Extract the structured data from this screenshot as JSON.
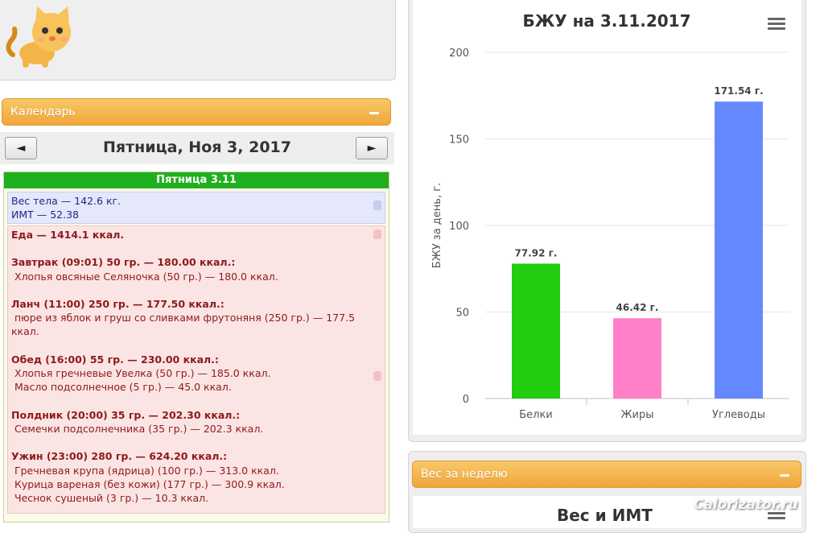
{
  "calendar": {
    "title": "Календарь",
    "prev_icon": "◄",
    "next_icon": "►",
    "date_label": "Пятница, Ноя 3, 2017"
  },
  "day": {
    "header": "Пятница 3.11",
    "weight": "Вес тела — 142.6 кг.",
    "bmi": "ИМТ — 52.38",
    "food_total": "Еда — 1414.1 ккал.",
    "meals": [
      {
        "title": "Завтрак (09:01) 50 гр. — 180.00 ккал.:",
        "items": [
          "Хлопья овсяные Селяночка (50 гр.) — 180.0 ккал."
        ]
      },
      {
        "title": "Ланч (11:00) 250 гр. — 177.50 ккал.:",
        "items": [
          "пюре из яблок и груш со сливками фрутоняня (250 гр.) — 177.5",
          "ккал."
        ]
      },
      {
        "title": "Обед (16:00) 55 гр. — 230.00 ккал.:",
        "items": [
          "Хлопья гречневые Увелка (50 гр.) — 185.0 ккал.",
          "Масло подсолнечное (5 гр.) — 45.0 ккал."
        ]
      },
      {
        "title": "Полдник (20:00) 35 гр. — 202.30 ккал.:",
        "items": [
          "Семечки подсолнечника (35 гр.) — 202.3 ккал."
        ]
      },
      {
        "title": "Ужин (23:00) 280 гр. — 624.20 ккал.:",
        "items": [
          "Гречневая крупа (ядрица) (100 гр.) — 313.0 ккал.",
          "Курица вареная (без кожи) (177 гр.) — 300.9 ккал.",
          "Чеснок сушеный (3 гр.) — 10.3 ккал."
        ]
      }
    ]
  },
  "week": {
    "title": "Вес за неделю",
    "chart_title": "Вес и ИМТ"
  },
  "watermark": "Calorizator.ru",
  "colors": {
    "orange": "#f0a63a",
    "green_header": "#1fb01f",
    "protein": "#22cc11",
    "fat": "#ff7fc8",
    "carbs": "#6688ff"
  },
  "icons": {
    "menu": "hamburger-icon",
    "collapse": "minus-icon",
    "mascot": "cat-mascot-icon"
  },
  "chart_data": {
    "type": "bar",
    "title": "БЖУ на 3.11.2017",
    "ylabel": "БЖУ за день, г.",
    "xlabel": "",
    "ylim": [
      0,
      200
    ],
    "yticks": [
      0,
      50,
      100,
      150,
      200
    ],
    "grid": true,
    "categories": [
      "Белки",
      "Жиры",
      "Углеводы"
    ],
    "values": [
      77.92,
      46.42,
      171.54
    ],
    "data_labels": [
      "77.92 г.",
      "46.42 г.",
      "171.54 г."
    ],
    "colors": [
      "#22cc11",
      "#ff7fc8",
      "#6688ff"
    ]
  }
}
